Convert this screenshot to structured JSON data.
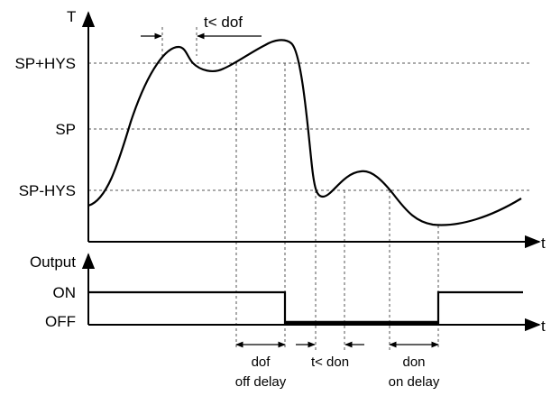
{
  "top_axis": {
    "y_label": "T",
    "x_label": "t"
  },
  "bottom_axis": {
    "y_label": "Output",
    "x_label": "t"
  },
  "levels": {
    "sp_plus_hys": "SP+HYS",
    "sp": "SP",
    "sp_minus_hys": "SP-HYS"
  },
  "output_states": {
    "on": "ON",
    "off": "OFF"
  },
  "annotations": {
    "t_less_dof": "t< dof",
    "dof": "dof",
    "off_delay": "off delay",
    "t_less_don": "t< don",
    "don": "don",
    "on_delay": "on delay"
  }
}
